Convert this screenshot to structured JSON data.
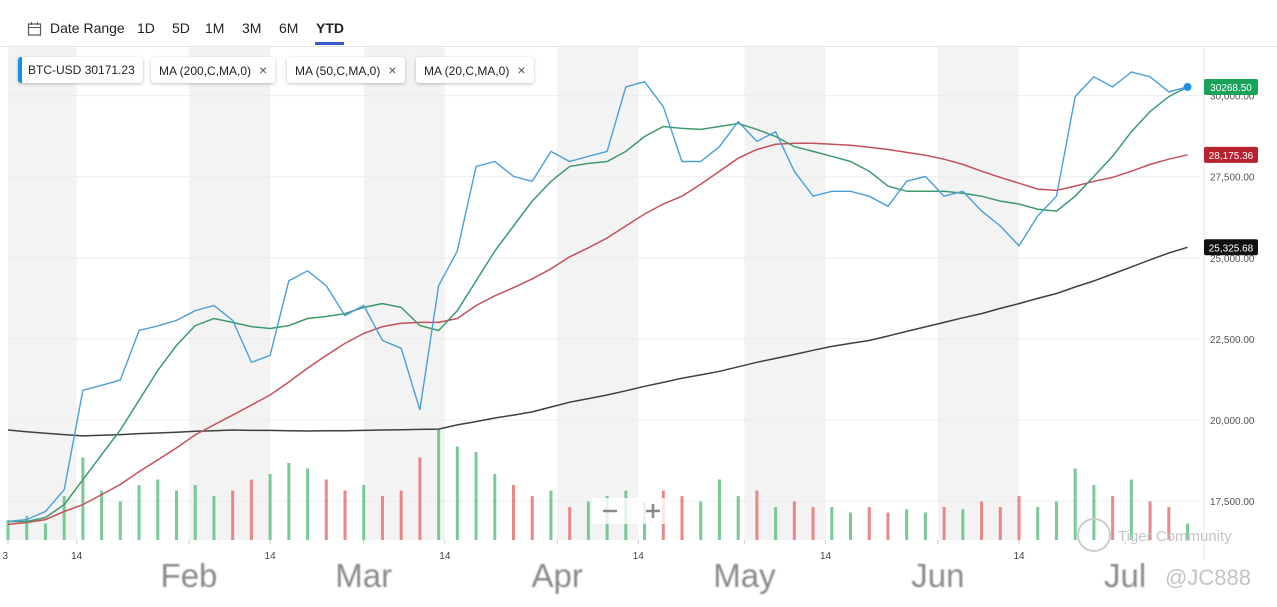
{
  "toolbar": {
    "date_range": "Date Range",
    "ranges": [
      "1D",
      "5D",
      "1M",
      "3M",
      "6M",
      "YTD"
    ],
    "active": "YTD"
  },
  "chart_data": {
    "type": "line",
    "x": [
      0,
      3,
      6,
      9,
      12,
      15,
      18,
      21,
      24,
      27,
      30,
      33,
      36,
      39,
      42,
      45,
      48,
      51,
      54,
      57,
      60,
      63,
      66,
      69,
      72,
      75,
      78,
      81,
      84,
      87,
      90,
      93,
      96,
      99,
      102,
      105,
      108,
      111,
      114,
      117,
      120,
      123,
      126,
      129,
      132,
      135,
      138,
      141,
      144,
      147,
      150,
      153,
      156,
      159,
      162,
      165,
      168,
      171,
      174,
      177,
      180,
      183,
      186,
      189
    ],
    "xlim": [
      0,
      191
    ],
    "xticks": [
      {
        "value": 0,
        "label": "3"
      },
      {
        "value": 11,
        "label": "14"
      },
      {
        "value": 29,
        "label": "Feb"
      },
      {
        "value": 42,
        "label": "14"
      },
      {
        "value": 57,
        "label": "Mar"
      },
      {
        "value": 70,
        "label": "14"
      },
      {
        "value": 88,
        "label": "Apr"
      },
      {
        "value": 101,
        "label": "14"
      },
      {
        "value": 118,
        "label": "May"
      },
      {
        "value": 131,
        "label": "14"
      },
      {
        "value": 149,
        "label": "Jun"
      },
      {
        "value": 162,
        "label": "14"
      },
      {
        "value": 179,
        "label": "Jul"
      }
    ],
    "ylim": [
      16300,
      31500
    ],
    "yticks": [
      {
        "value": 17500,
        "label": "17,500.00"
      },
      {
        "value": 20000,
        "label": "20,000.00"
      },
      {
        "value": 22500,
        "label": "22,500.00"
      },
      {
        "value": 25000,
        "label": "25,000.00"
      },
      {
        "value": 27500,
        "label": "27,500.00"
      },
      {
        "value": 30000,
        "label": "30,000.00"
      }
    ],
    "grid": true,
    "series": [
      {
        "name": "BTC-USD",
        "color": "#4a9fd8",
        "quote": 30171.23,
        "badge_color": "#19a35a",
        "marker": true,
        "last": {
          "value": 30268.5,
          "label": "30268.50"
        },
        "values": [
          16870,
          16930,
          17180,
          17850,
          20920,
          21070,
          21230,
          22760,
          22900,
          23070,
          23370,
          23530,
          23070,
          21780,
          21990,
          24290,
          24600,
          24140,
          23220,
          23530,
          22450,
          22210,
          20310,
          24140,
          25210,
          27820,
          27970,
          27510,
          27360,
          28280,
          27970,
          28130,
          28280,
          30270,
          30430,
          29660,
          27970,
          27970,
          28430,
          29200,
          28590,
          28890,
          27670,
          26900,
          27050,
          27050,
          26900,
          26590,
          27360,
          27510,
          26900,
          27050,
          26440,
          25980,
          25370,
          26290,
          26900,
          29970,
          30580,
          30270,
          30730,
          30580,
          30120,
          30268.5
        ]
      },
      {
        "name": "MA (200,C,MA,0)",
        "color": "#3f3f3f",
        "badge_color": "#111111",
        "last": {
          "value": 25325.68,
          "label": "25,325.68"
        },
        "values": [
          19690,
          19640,
          19590,
          19550,
          19510,
          19530,
          19550,
          19580,
          19600,
          19620,
          19650,
          19670,
          19690,
          19680,
          19680,
          19670,
          19660,
          19670,
          19670,
          19680,
          19690,
          19700,
          19710,
          19720,
          19850,
          19950,
          20060,
          20150,
          20250,
          20400,
          20550,
          20660,
          20770,
          20900,
          21040,
          21160,
          21290,
          21390,
          21500,
          21640,
          21780,
          21900,
          22020,
          22150,
          22270,
          22360,
          22450,
          22590,
          22730,
          22870,
          23010,
          23150,
          23280,
          23440,
          23590,
          23750,
          23900,
          24100,
          24290,
          24500,
          24720,
          24940,
          25150,
          25325.68
        ]
      },
      {
        "name": "MA (50,C,MA,0)",
        "color": "#c4505a",
        "badge_color": "#b8222f",
        "last": {
          "value": 28175.36,
          "label": "28,175.36"
        },
        "values": [
          16780,
          16840,
          16930,
          17180,
          17390,
          17700,
          18010,
          18410,
          18770,
          19140,
          19540,
          19850,
          20150,
          20460,
          20770,
          21170,
          21600,
          21990,
          22360,
          22670,
          22880,
          22980,
          23010,
          23010,
          23130,
          23530,
          23830,
          24080,
          24350,
          24660,
          25030,
          25310,
          25610,
          25980,
          26350,
          26660,
          26900,
          27270,
          27670,
          28070,
          28340,
          28500,
          28530,
          28530,
          28500,
          28470,
          28410,
          28340,
          28250,
          28160,
          28040,
          27880,
          27670,
          27480,
          27300,
          27120,
          27080,
          27210,
          27360,
          27480,
          27670,
          27880,
          28040,
          28175.36
        ]
      },
      {
        "name": "MA (20,C,MA,0)",
        "color": "#3d9a6c",
        "values": [
          16870,
          16870,
          16990,
          17390,
          18160,
          18930,
          19690,
          20610,
          21530,
          22300,
          22910,
          23130,
          23010,
          22880,
          22820,
          22910,
          23130,
          23190,
          23280,
          23470,
          23590,
          23470,
          22910,
          22760,
          23370,
          24290,
          25210,
          25980,
          26750,
          27360,
          27820,
          27910,
          27970,
          28280,
          28740,
          29050,
          28990,
          28960,
          29050,
          29140,
          28960,
          28740,
          28430,
          28280,
          28130,
          27970,
          27670,
          27210,
          27050,
          27050,
          27050,
          26990,
          26900,
          26750,
          26660,
          26500,
          26440,
          26900,
          27510,
          28130,
          28890,
          29510,
          29970,
          30270
        ]
      }
    ],
    "volume": {
      "lim": [
        0,
        100
      ],
      "up_color": "#62c185",
      "down_color": "#e57373",
      "values": [
        18,
        22,
        15,
        40,
        75,
        45,
        35,
        50,
        55,
        45,
        50,
        40,
        45,
        55,
        60,
        70,
        65,
        55,
        45,
        50,
        40,
        45,
        75,
        100,
        85,
        80,
        60,
        50,
        40,
        45,
        30,
        35,
        40,
        45,
        35,
        45,
        40,
        35,
        55,
        40,
        45,
        30,
        35,
        30,
        30,
        25,
        30,
        25,
        28,
        25,
        30,
        28,
        35,
        30,
        40,
        30,
        35,
        65,
        50,
        40,
        55,
        35,
        30,
        15
      ]
    }
  },
  "watermarks": [
    "Tiger Community",
    "@JC888"
  ]
}
